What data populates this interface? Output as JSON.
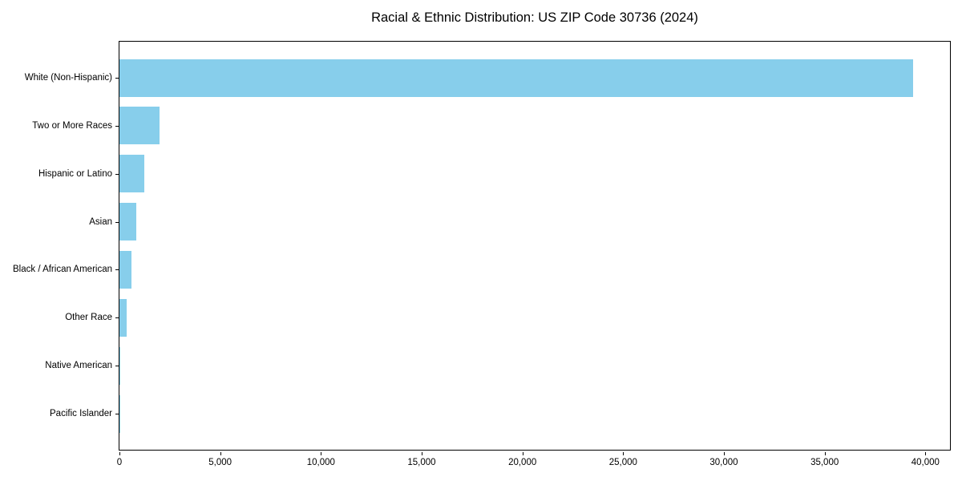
{
  "chart_data": {
    "type": "bar",
    "orientation": "horizontal",
    "title": "Racial & Ethnic Distribution: US ZIP Code 30736 (2024)",
    "xlabel": "",
    "ylabel": "",
    "categories": [
      "White (Non-Hispanic)",
      "Two or More Races",
      "Hispanic or Latino",
      "Asian",
      "Black / African American",
      "Other Race",
      "Native American",
      "Pacific Islander"
    ],
    "values": [
      39400,
      2000,
      1250,
      820,
      580,
      340,
      30,
      10
    ],
    "xlim": [
      0,
      41300
    ],
    "x_ticks": [
      0,
      5000,
      10000,
      15000,
      20000,
      25000,
      30000,
      35000,
      40000
    ],
    "x_tick_labels": [
      "0",
      "5,000",
      "10,000",
      "15,000",
      "20,000",
      "25,000",
      "30,000",
      "35,000",
      "40,000"
    ],
    "bar_color": "#87CEEB",
    "axis_color": "#000000",
    "background_color": "#FFFFFF",
    "grid": false,
    "legend": null
  }
}
